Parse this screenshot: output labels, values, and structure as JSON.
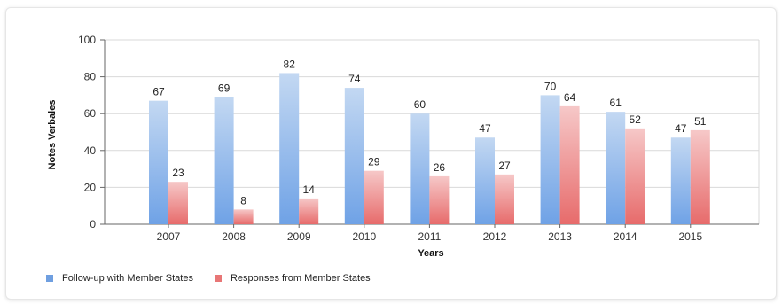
{
  "chart_data": {
    "type": "bar",
    "categories": [
      "2007",
      "2008",
      "2009",
      "2010",
      "2011",
      "2012",
      "2013",
      "2014",
      "2015"
    ],
    "series": [
      {
        "name": "Follow-up with Member States",
        "values": [
          67,
          69,
          82,
          74,
          60,
          47,
          70,
          61,
          47
        ],
        "color": "#6f9fe0"
      },
      {
        "name": "Responses from Member States",
        "values": [
          23,
          8,
          14,
          29,
          26,
          27,
          64,
          52,
          51
        ],
        "color": "#e87676"
      }
    ],
    "title": "",
    "xlabel": "Years",
    "ylabel": "Notes Verbales",
    "ylim": [
      0,
      100
    ],
    "yticks": [
      0,
      20,
      40,
      60,
      80,
      100
    ],
    "grid": true,
    "legend_position": "bottom-left"
  }
}
